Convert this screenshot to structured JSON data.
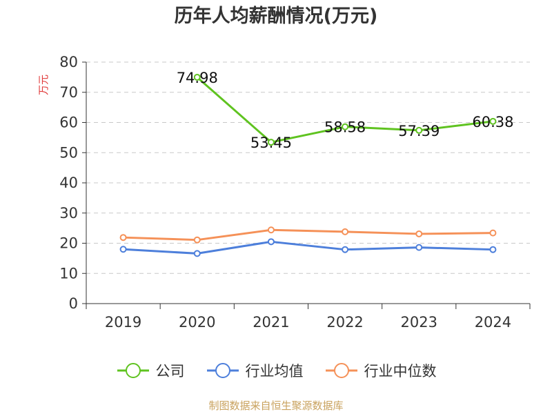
{
  "title": "历年人均薪酬情况(万元)",
  "source": "制图数据来自恒生聚源数据库",
  "chart_data": {
    "type": "line",
    "title": "历年人均薪酬情况(万元)",
    "ylabel": "万元",
    "xlabel": "",
    "ylim": [
      0,
      80
    ],
    "yticks": [
      0,
      10,
      20,
      30,
      40,
      50,
      60,
      70,
      80
    ],
    "categories": [
      "2019",
      "2020",
      "2021",
      "2022",
      "2023",
      "2024"
    ],
    "grid": true,
    "legend_position": "bottom",
    "series": [
      {
        "name": "公司",
        "color": "#5fc320",
        "values": [
          null,
          74.98,
          53.45,
          58.58,
          57.39,
          60.38
        ],
        "labels": [
          "",
          "74.98",
          "53.45",
          "58.58",
          "57.39",
          "60.38"
        ]
      },
      {
        "name": "行业均值",
        "color": "#4d7fdb",
        "values": [
          18.0,
          16.6,
          20.5,
          17.9,
          18.6,
          17.9
        ]
      },
      {
        "name": "行业中位数",
        "color": "#f59158",
        "values": [
          21.9,
          21.1,
          24.4,
          23.8,
          23.1,
          23.4
        ]
      }
    ]
  }
}
